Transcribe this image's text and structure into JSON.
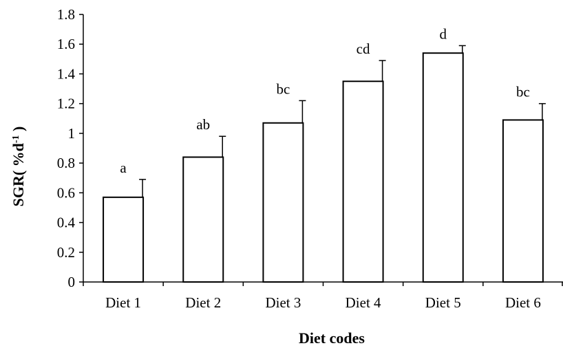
{
  "chart_data": {
    "type": "bar",
    "title": "",
    "xlabel": "Diet codes",
    "ylabel": {
      "prefix": "SGR( %d",
      "sup": "-1",
      "suffix": " )"
    },
    "categories": [
      "Diet 1",
      "Diet 2",
      "Diet 3",
      "Diet 4",
      "Diet 5",
      "Diet 6"
    ],
    "series": [
      {
        "values": [
          0.57,
          0.84,
          1.07,
          1.35,
          1.54,
          1.09
        ],
        "errors": [
          0.12,
          0.14,
          0.15,
          0.14,
          0.05,
          0.11
        ],
        "significance": [
          "a",
          "ab",
          "bc",
          "cd",
          "d",
          "bc"
        ]
      }
    ],
    "ylim": [
      0,
      1.8
    ],
    "yticks": [
      0,
      0.2,
      0.4,
      0.6,
      0.8,
      1,
      1.2,
      1.4,
      1.6,
      1.8
    ],
    "ytick_labels": [
      "0",
      "0.2",
      "0.4",
      "0.6",
      "0.8",
      "1",
      "1.2",
      "1.4",
      "1.6",
      "1.8"
    ],
    "grid": false,
    "legend": "none",
    "colors": {
      "bar_fill": "#ffffff",
      "bar_stroke": "#000000",
      "axis": "#000000"
    }
  }
}
